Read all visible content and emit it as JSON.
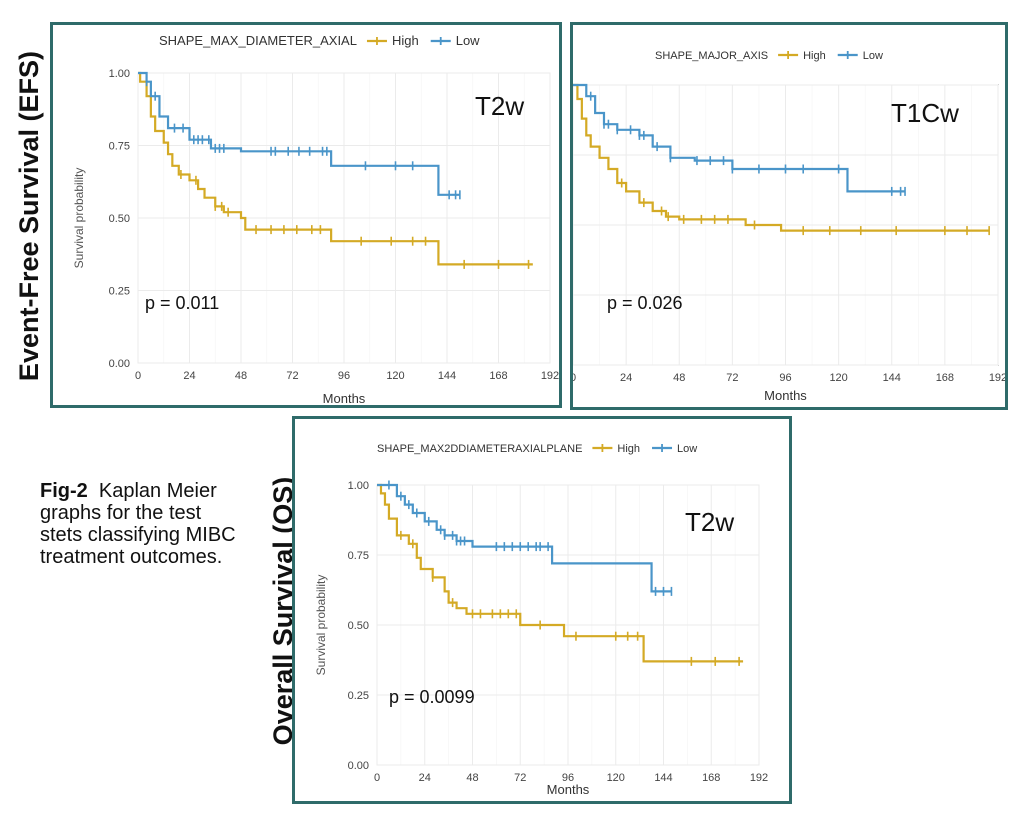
{
  "row_labels": {
    "efs": "Event-Free Survival (EFS)",
    "os": "Overall Survival (OS)"
  },
  "caption": {
    "fig_label": "Fig-2",
    "text": "Kaplan Meier graphs for the test stets classifying MIBC treatment outcomes."
  },
  "colors": {
    "high": "#d4aa25",
    "low": "#4a95c9",
    "frame": "#2f6b6a"
  },
  "chart_data": [
    {
      "id": "efs_t2w",
      "type": "line",
      "title": "SHAPE_MAX_DIAMETER_AXIAL",
      "sequence": "T2w",
      "p_value": "p = 0.011",
      "xlabel": "Months",
      "ylabel": "Survival probability",
      "x_ticks": [
        0,
        24,
        48,
        72,
        96,
        120,
        144,
        168,
        192
      ],
      "y_ticks": [
        "0.00",
        "0.25",
        "0.50",
        "0.75",
        "1.00"
      ],
      "xlim": [
        0,
        192
      ],
      "ylim": [
        0,
        1
      ],
      "series": [
        {
          "name": "High",
          "steps": [
            [
              0,
              1.0
            ],
            [
              1,
              0.97
            ],
            [
              4,
              0.92
            ],
            [
              6,
              0.85
            ],
            [
              8,
              0.8
            ],
            [
              12,
              0.76
            ],
            [
              14,
              0.72
            ],
            [
              16,
              0.68
            ],
            [
              19,
              0.65
            ],
            [
              24,
              0.63
            ],
            [
              28,
              0.6
            ],
            [
              31,
              0.57
            ],
            [
              36,
              0.54
            ],
            [
              40,
              0.52
            ],
            [
              48,
              0.5
            ],
            [
              50,
              0.46
            ],
            [
              90,
              0.42
            ],
            [
              140,
              0.34
            ],
            [
              184,
              0.34
            ]
          ],
          "censor": [
            20,
            27,
            36,
            39,
            42,
            55,
            62,
            68,
            74,
            81,
            85,
            104,
            118,
            128,
            134,
            152,
            168,
            182
          ]
        },
        {
          "name": "Low",
          "steps": [
            [
              0,
              1.0
            ],
            [
              4,
              0.97
            ],
            [
              6,
              0.92
            ],
            [
              10,
              0.85
            ],
            [
              14,
              0.81
            ],
            [
              24,
              0.77
            ],
            [
              34,
              0.74
            ],
            [
              48,
              0.73
            ],
            [
              90,
              0.68
            ],
            [
              140,
              0.58
            ],
            [
              150,
              0.58
            ]
          ],
          "censor": [
            4,
            8,
            17,
            21,
            26,
            28,
            30,
            33,
            36,
            38,
            40,
            62,
            64,
            70,
            75,
            80,
            86,
            88,
            106,
            120,
            128,
            145,
            148,
            150
          ]
        }
      ]
    },
    {
      "id": "efs_t1cw",
      "type": "line",
      "title": "SHAPE_MAJOR_AXIS",
      "sequence": "T1Cw",
      "p_value": "p = 0.026",
      "xlabel": "Months",
      "ylabel": "",
      "x_ticks": [
        0,
        24,
        48,
        72,
        96,
        120,
        144,
        168,
        192
      ],
      "y_ticks": [],
      "xlim": [
        0,
        192
      ],
      "ylim": [
        0,
        1
      ],
      "series": [
        {
          "name": "High",
          "steps": [
            [
              0,
              1.0
            ],
            [
              2,
              0.95
            ],
            [
              4,
              0.88
            ],
            [
              6,
              0.82
            ],
            [
              8,
              0.78
            ],
            [
              12,
              0.74
            ],
            [
              16,
              0.7
            ],
            [
              20,
              0.65
            ],
            [
              24,
              0.62
            ],
            [
              30,
              0.58
            ],
            [
              36,
              0.55
            ],
            [
              42,
              0.53
            ],
            [
              48,
              0.52
            ],
            [
              78,
              0.5
            ],
            [
              94,
              0.48
            ],
            [
              188,
              0.48
            ]
          ],
          "censor": [
            22,
            32,
            40,
            43,
            50,
            58,
            64,
            70,
            82,
            104,
            116,
            130,
            146,
            168,
            178,
            188
          ]
        },
        {
          "name": "Low",
          "steps": [
            [
              0,
              1.0
            ],
            [
              6,
              0.96
            ],
            [
              10,
              0.9
            ],
            [
              14,
              0.86
            ],
            [
              20,
              0.84
            ],
            [
              30,
              0.82
            ],
            [
              36,
              0.78
            ],
            [
              44,
              0.74
            ],
            [
              55,
              0.73
            ],
            [
              72,
              0.7
            ],
            [
              124,
              0.62
            ],
            [
              150,
              0.62
            ]
          ],
          "censor": [
            8,
            14,
            16,
            20,
            26,
            30,
            32,
            38,
            44,
            56,
            62,
            68,
            72,
            84,
            96,
            104,
            120,
            144,
            148,
            150
          ]
        }
      ]
    },
    {
      "id": "os_t2w",
      "type": "line",
      "title": "SHAPE_MAX2DDIAMETERAXIALPLANE",
      "sequence": "T2w",
      "p_value": "p = 0.0099",
      "xlabel": "Months",
      "ylabel": "Survival probability",
      "x_ticks": [
        0,
        24,
        48,
        72,
        96,
        120,
        144,
        168,
        192
      ],
      "y_ticks": [
        "0.00",
        "0.25",
        "0.50",
        "0.75",
        "1.00"
      ],
      "xlim": [
        0,
        192
      ],
      "ylim": [
        0,
        1
      ],
      "series": [
        {
          "name": "High",
          "steps": [
            [
              0,
              1.0
            ],
            [
              2,
              0.97
            ],
            [
              4,
              0.93
            ],
            [
              6,
              0.88
            ],
            [
              10,
              0.82
            ],
            [
              16,
              0.79
            ],
            [
              20,
              0.74
            ],
            [
              22,
              0.7
            ],
            [
              28,
              0.67
            ],
            [
              34,
              0.62
            ],
            [
              36,
              0.58
            ],
            [
              40,
              0.56
            ],
            [
              45,
              0.54
            ],
            [
              72,
              0.5
            ],
            [
              94,
              0.46
            ],
            [
              134,
              0.37
            ],
            [
              184,
              0.37
            ]
          ],
          "censor": [
            12,
            18,
            28,
            38,
            48,
            52,
            58,
            62,
            66,
            70,
            82,
            100,
            120,
            126,
            131,
            158,
            170,
            182
          ]
        },
        {
          "name": "Low",
          "steps": [
            [
              0,
              1.0
            ],
            [
              10,
              0.96
            ],
            [
              14,
              0.93
            ],
            [
              18,
              0.9
            ],
            [
              24,
              0.87
            ],
            [
              30,
              0.84
            ],
            [
              34,
              0.82
            ],
            [
              40,
              0.8
            ],
            [
              48,
              0.78
            ],
            [
              88,
              0.72
            ],
            [
              138,
              0.62
            ],
            [
              148,
              0.62
            ]
          ],
          "censor": [
            6,
            12,
            16,
            20,
            26,
            32,
            34,
            38,
            40,
            42,
            44,
            60,
            64,
            68,
            72,
            76,
            80,
            82,
            86,
            140,
            144,
            148
          ]
        }
      ]
    }
  ]
}
